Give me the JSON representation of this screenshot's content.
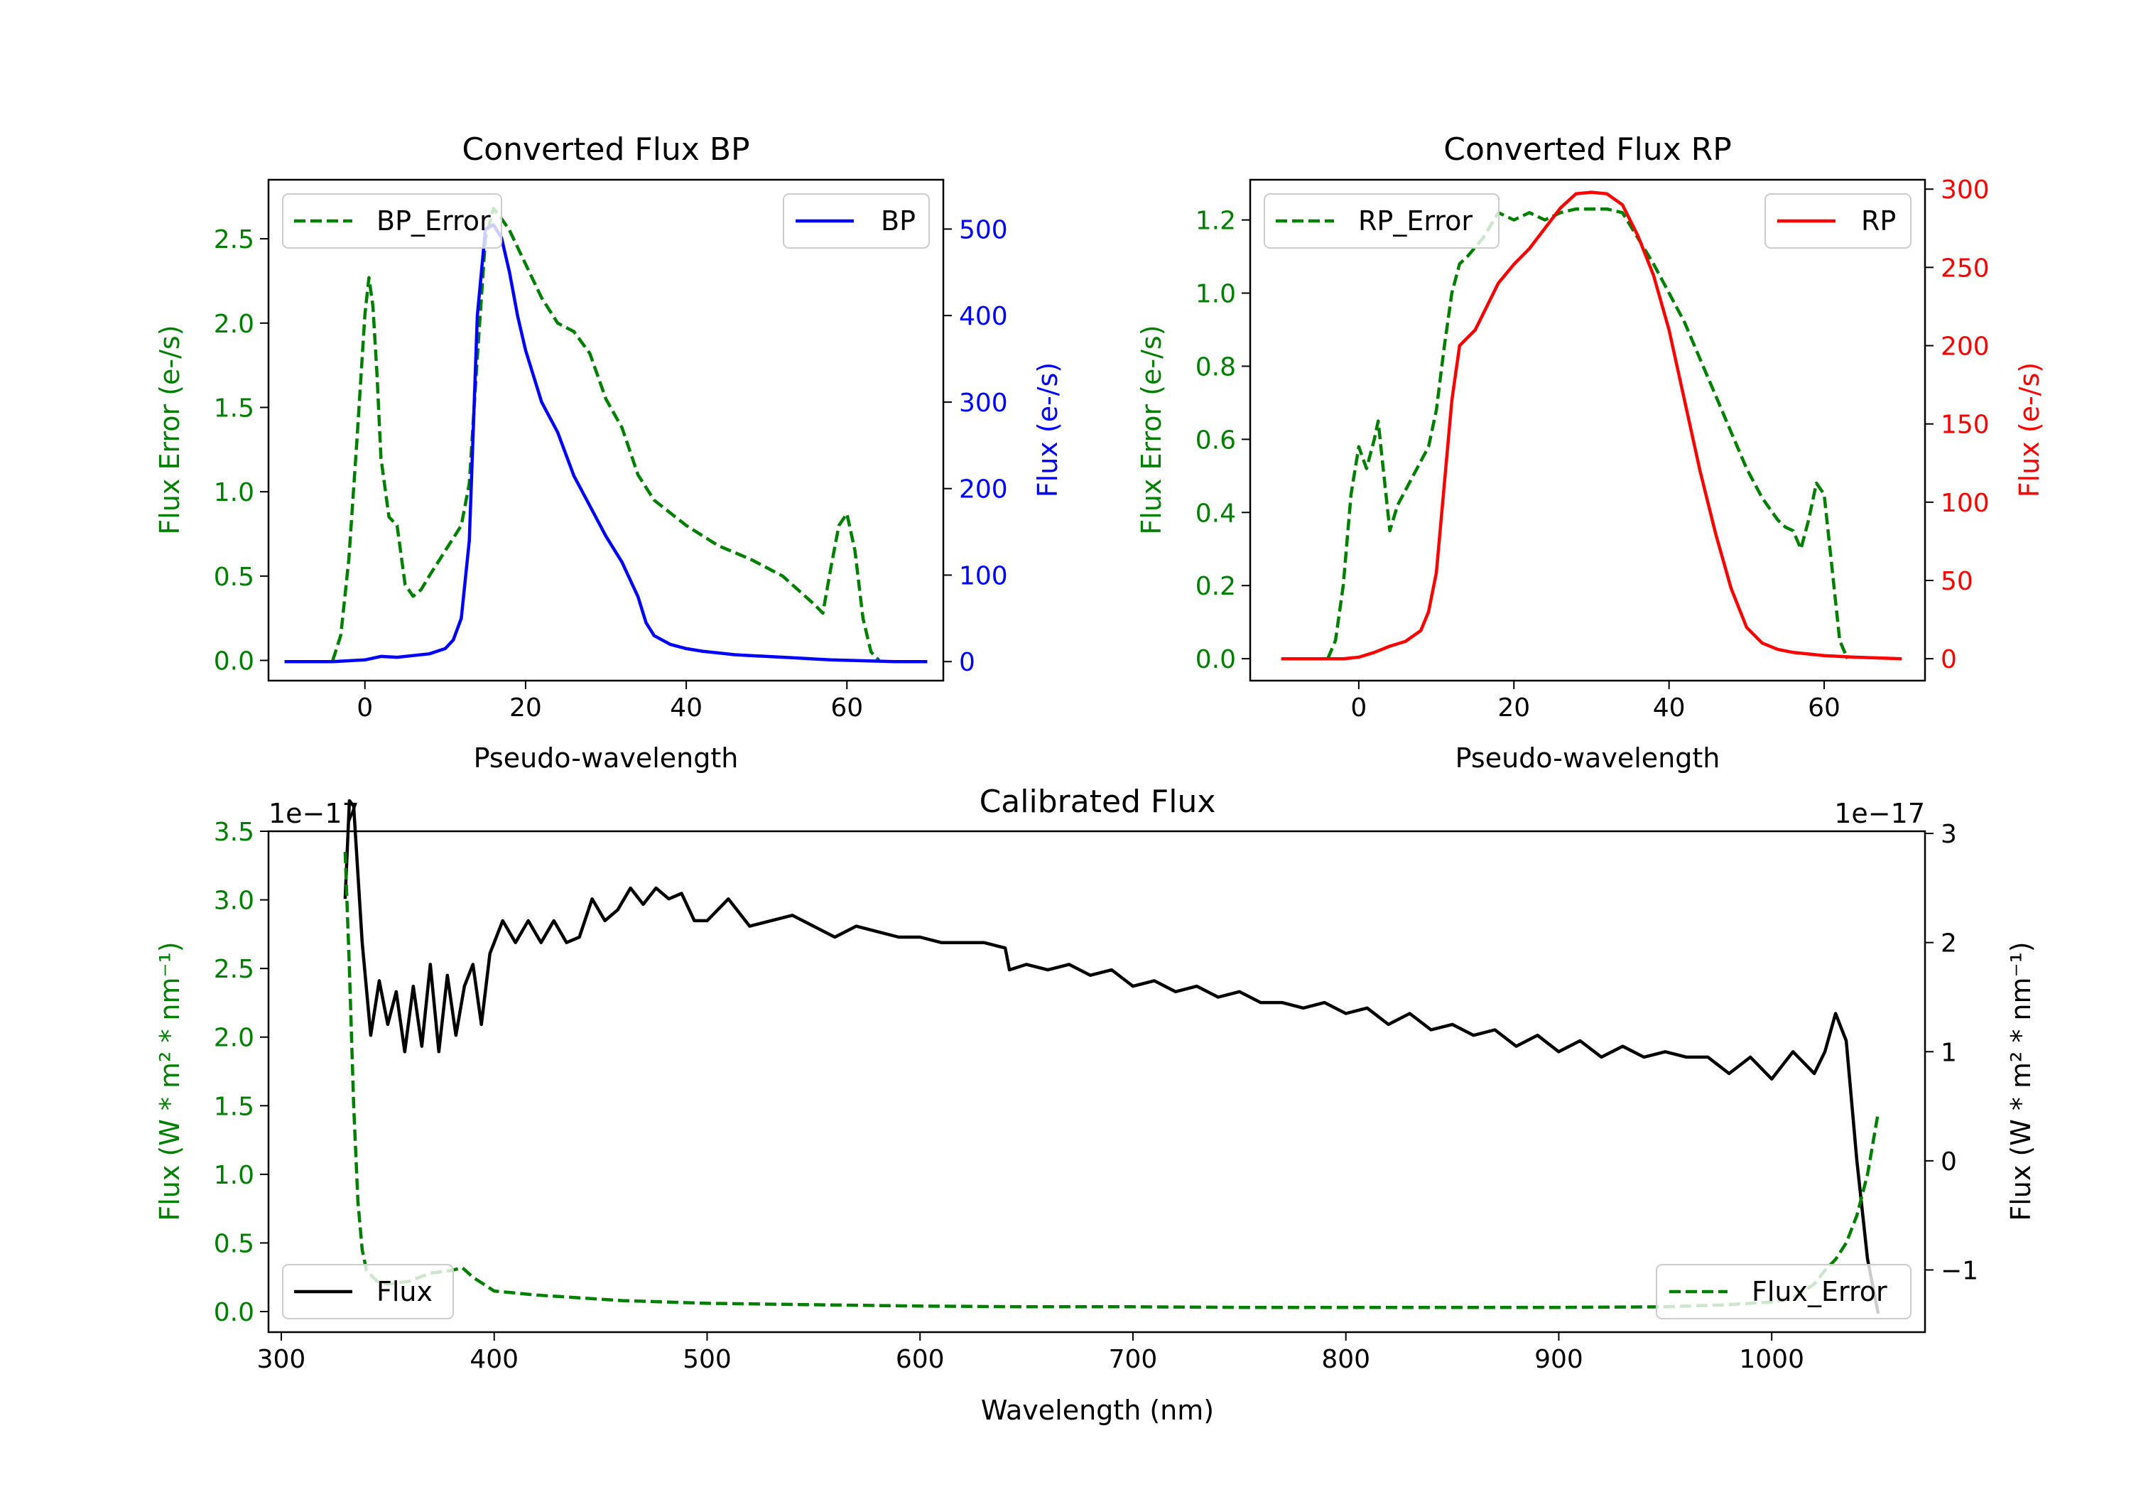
{
  "colors": {
    "green": "#008000",
    "blue": "#0000ff",
    "red": "#ff0000",
    "black": "#000000"
  },
  "chart_data": [
    {
      "id": "bp",
      "type": "line",
      "title": "Converted Flux BP",
      "xlabel": "Pseudo-wavelength",
      "ylabel_left": "Flux Error (e-/s)",
      "ylabel_right": "Flux (e-/s)",
      "xlim": [
        -12,
        72
      ],
      "ylim_left": [
        -0.12,
        2.85
      ],
      "ylim_right": [
        -22,
        557
      ],
      "xticks": [
        0,
        20,
        40,
        60
      ],
      "yticks_left": [
        0.0,
        0.5,
        1.0,
        1.5,
        2.0,
        2.5
      ],
      "yticks_left_labels": [
        "0.0",
        "0.5",
        "1.0",
        "1.5",
        "2.0",
        "2.5"
      ],
      "yticks_right": [
        0,
        100,
        200,
        300,
        400,
        500
      ],
      "yticks_right_labels": [
        "0",
        "100",
        "200",
        "300",
        "400",
        "500"
      ],
      "legend_left": {
        "label": "BP_Error",
        "position": "upper left"
      },
      "legend_right": {
        "label": "BP",
        "position": "upper right"
      },
      "series": [
        {
          "name": "BP_Error",
          "axis": "left",
          "style": "dashed",
          "color": "#008000",
          "x": [
            -4,
            -3,
            -2,
            -1,
            0,
            0.5,
            1,
            1.5,
            2,
            3,
            4,
            5,
            6,
            7,
            8,
            10,
            12,
            13,
            14,
            15,
            16,
            17,
            18,
            20,
            22,
            24,
            26,
            28,
            30,
            32,
            34,
            36,
            40,
            44,
            48,
            52,
            56,
            57,
            58,
            59,
            60,
            61,
            62,
            63,
            64
          ],
          "y": [
            0.0,
            0.15,
            0.6,
            1.3,
            2.05,
            2.27,
            2.1,
            1.7,
            1.2,
            0.85,
            0.8,
            0.45,
            0.38,
            0.42,
            0.5,
            0.65,
            0.8,
            1.05,
            1.8,
            2.5,
            2.68,
            2.62,
            2.55,
            2.35,
            2.15,
            2.0,
            1.95,
            1.82,
            1.55,
            1.38,
            1.1,
            0.95,
            0.8,
            0.68,
            0.6,
            0.5,
            0.33,
            0.28,
            0.55,
            0.8,
            0.87,
            0.65,
            0.25,
            0.05,
            0.0
          ]
        },
        {
          "name": "BP",
          "axis": "right",
          "style": "solid",
          "color": "#0000ff",
          "x": [
            -10,
            -4,
            -2,
            0,
            2,
            4,
            6,
            8,
            10,
            11,
            12,
            13,
            14,
            15,
            16,
            17,
            18,
            19,
            20,
            22,
            24,
            26,
            28,
            30,
            32,
            34,
            35,
            36,
            38,
            40,
            42,
            44,
            46,
            48,
            50,
            54,
            58,
            62,
            66,
            70
          ],
          "y": [
            0,
            0,
            1,
            2,
            6,
            5,
            7,
            9,
            15,
            25,
            50,
            140,
            400,
            500,
            505,
            490,
            450,
            400,
            360,
            300,
            265,
            215,
            180,
            145,
            115,
            75,
            45,
            30,
            20,
            15,
            12,
            10,
            8,
            7,
            6,
            4,
            2,
            1,
            0,
            0
          ]
        }
      ]
    },
    {
      "id": "rp",
      "type": "line",
      "title": "Converted Flux RP",
      "xlabel": "Pseudo-wavelength",
      "ylabel_left": "Flux Error (e-/s)",
      "ylabel_right": "Flux (e-/s)",
      "xlim": [
        -14,
        73
      ],
      "ylim_left": [
        -0.06,
        1.31
      ],
      "ylim_right": [
        -14,
        306
      ],
      "xticks": [
        0,
        20,
        40,
        60
      ],
      "yticks_left": [
        0.0,
        0.2,
        0.4,
        0.6,
        0.8,
        1.0,
        1.2
      ],
      "yticks_left_labels": [
        "0.0",
        "0.2",
        "0.4",
        "0.6",
        "0.8",
        "1.0",
        "1.2"
      ],
      "yticks_right": [
        0,
        50,
        100,
        150,
        200,
        250,
        300
      ],
      "yticks_right_labels": [
        "0",
        "50",
        "100",
        "150",
        "200",
        "250",
        "300"
      ],
      "legend_left": {
        "label": "RP_Error",
        "position": "upper left"
      },
      "legend_right": {
        "label": "RP",
        "position": "upper right"
      },
      "series": [
        {
          "name": "RP_Error",
          "axis": "left",
          "style": "dashed",
          "color": "#008000",
          "x": [
            -4,
            -3,
            -2,
            -1,
            0,
            1,
            2,
            2.5,
            3,
            4,
            5,
            7,
            9,
            10,
            11,
            12,
            13,
            14,
            16,
            18,
            20,
            22,
            24,
            26,
            28,
            30,
            32,
            34,
            36,
            38,
            40,
            42,
            44,
            46,
            48,
            50,
            52,
            54,
            55,
            56,
            57,
            58,
            59,
            60,
            61,
            62,
            63
          ],
          "y": [
            0.0,
            0.05,
            0.2,
            0.45,
            0.58,
            0.52,
            0.6,
            0.65,
            0.55,
            0.35,
            0.42,
            0.5,
            0.58,
            0.68,
            0.85,
            1.0,
            1.08,
            1.1,
            1.15,
            1.22,
            1.2,
            1.22,
            1.2,
            1.22,
            1.23,
            1.23,
            1.23,
            1.22,
            1.15,
            1.08,
            1.0,
            0.92,
            0.82,
            0.72,
            0.62,
            0.52,
            0.44,
            0.38,
            0.36,
            0.35,
            0.3,
            0.38,
            0.48,
            0.45,
            0.25,
            0.05,
            0.0
          ]
        },
        {
          "name": "RP",
          "axis": "right",
          "style": "solid",
          "color": "#ff0000",
          "x": [
            -10,
            -4,
            -2,
            0,
            2,
            4,
            6,
            8,
            9,
            10,
            11,
            12,
            13,
            14,
            15,
            16,
            18,
            20,
            22,
            24,
            26,
            28,
            30,
            32,
            34,
            36,
            38,
            40,
            42,
            44,
            46,
            48,
            50,
            52,
            54,
            56,
            58,
            60,
            64,
            70
          ],
          "y": [
            0,
            0,
            0,
            1,
            4,
            8,
            11,
            18,
            30,
            55,
            110,
            165,
            200,
            205,
            210,
            220,
            240,
            252,
            262,
            275,
            288,
            297,
            298,
            297,
            290,
            270,
            245,
            210,
            165,
            120,
            80,
            45,
            20,
            10,
            6,
            4,
            3,
            2,
            1,
            0
          ]
        }
      ]
    },
    {
      "id": "calibrated",
      "type": "line",
      "title": "Calibrated Flux",
      "xlabel": "Wavelength (nm)",
      "ylabel_left": "Flux (W * m² * nm⁻¹)",
      "ylabel_right": "Flux (W * m² * nm⁻¹)",
      "offset_left": "1e−17",
      "offset_right": "1e−17",
      "xlim": [
        294,
        1072
      ],
      "ylim_left": [
        -0.15,
        3.5
      ],
      "ylim_right": [
        -1.57,
        3.02
      ],
      "xticks": [
        300,
        400,
        500,
        600,
        700,
        800,
        900,
        1000
      ],
      "yticks_left": [
        0.0,
        0.5,
        1.0,
        1.5,
        2.0,
        2.5,
        3.0,
        3.5
      ],
      "yticks_left_labels": [
        "0.0",
        "0.5",
        "1.0",
        "1.5",
        "2.0",
        "2.5",
        "3.0",
        "3.5"
      ],
      "yticks_right": [
        -1,
        0,
        1,
        2,
        3
      ],
      "yticks_right_labels": [
        "−1",
        "0",
        "1",
        "2",
        "3"
      ],
      "legend_left": {
        "label": "Flux",
        "position": "lower left"
      },
      "legend_right": {
        "label": "Flux_Error",
        "position": "lower right"
      },
      "series": [
        {
          "name": "Flux",
          "axis": "right",
          "style": "solid",
          "color": "#000000",
          "x": [
            330,
            332,
            334,
            338,
            342,
            346,
            350,
            354,
            358,
            362,
            366,
            370,
            374,
            378,
            382,
            386,
            390,
            394,
            398,
            404,
            410,
            416,
            422,
            428,
            434,
            440,
            446,
            452,
            458,
            464,
            470,
            476,
            482,
            488,
            494,
            500,
            510,
            520,
            530,
            540,
            550,
            560,
            570,
            580,
            590,
            600,
            610,
            620,
            630,
            640,
            642,
            650,
            660,
            670,
            680,
            690,
            700,
            710,
            720,
            730,
            740,
            750,
            760,
            770,
            780,
            790,
            800,
            810,
            820,
            830,
            840,
            850,
            860,
            870,
            880,
            890,
            900,
            910,
            920,
            930,
            940,
            950,
            960,
            970,
            980,
            990,
            1000,
            1010,
            1020,
            1025,
            1030,
            1035,
            1040,
            1045,
            1050
          ],
          "y": [
            2.4,
            3.3,
            3.25,
            2.0,
            1.15,
            1.65,
            1.25,
            1.55,
            1.0,
            1.6,
            1.05,
            1.8,
            1.0,
            1.7,
            1.15,
            1.6,
            1.8,
            1.25,
            1.9,
            2.2,
            2.0,
            2.2,
            2.0,
            2.2,
            2.0,
            2.05,
            2.4,
            2.2,
            2.3,
            2.5,
            2.35,
            2.5,
            2.4,
            2.45,
            2.2,
            2.2,
            2.4,
            2.15,
            2.2,
            2.25,
            2.15,
            2.05,
            2.15,
            2.1,
            2.05,
            2.05,
            2.0,
            2.0,
            2.0,
            1.95,
            1.75,
            1.8,
            1.75,
            1.8,
            1.7,
            1.75,
            1.6,
            1.65,
            1.55,
            1.6,
            1.5,
            1.55,
            1.45,
            1.45,
            1.4,
            1.45,
            1.35,
            1.4,
            1.25,
            1.35,
            1.2,
            1.25,
            1.15,
            1.2,
            1.05,
            1.15,
            1.0,
            1.1,
            0.95,
            1.05,
            0.95,
            1.0,
            0.95,
            0.95,
            0.8,
            0.95,
            0.75,
            1.0,
            0.8,
            1.0,
            1.35,
            1.1,
            0.0,
            -0.9,
            -1.4
          ]
        },
        {
          "name": "Flux_Error",
          "axis": "left",
          "style": "dashed",
          "color": "#008000",
          "x": [
            330,
            332,
            334,
            336,
            338,
            340,
            345,
            350,
            360,
            370,
            380,
            385,
            390,
            400,
            420,
            440,
            460,
            500,
            550,
            600,
            650,
            700,
            750,
            800,
            850,
            900,
            950,
            980,
            1000,
            1010,
            1020,
            1025,
            1030,
            1035,
            1040,
            1045,
            1050
          ],
          "y": [
            3.35,
            2.5,
            1.5,
            0.8,
            0.45,
            0.3,
            0.22,
            0.2,
            0.22,
            0.28,
            0.3,
            0.32,
            0.25,
            0.15,
            0.12,
            0.1,
            0.08,
            0.06,
            0.05,
            0.04,
            0.035,
            0.035,
            0.03,
            0.03,
            0.03,
            0.03,
            0.035,
            0.05,
            0.07,
            0.1,
            0.2,
            0.3,
            0.38,
            0.5,
            0.7,
            1.0,
            1.45
          ]
        }
      ]
    }
  ]
}
